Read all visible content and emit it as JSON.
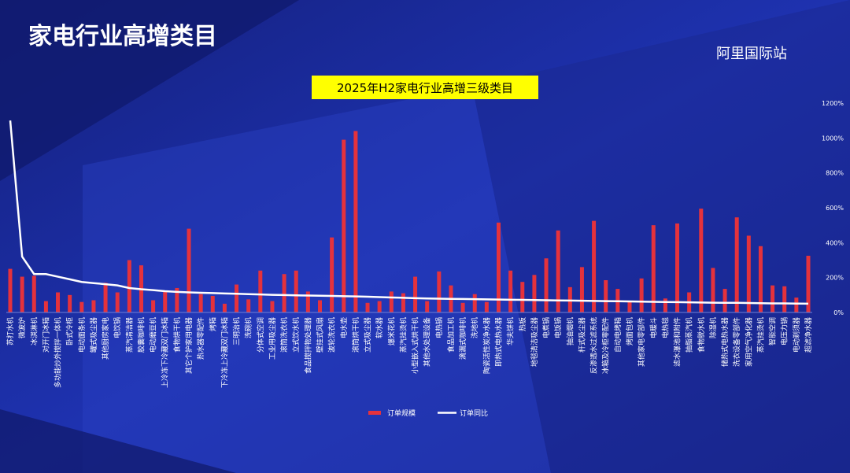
{
  "header": {
    "title": "家电行业高增类目",
    "logo": "阿里国际站"
  },
  "chart_data": {
    "type": "bar",
    "title": "2025年H2家电行业高增三级类目",
    "categories": [
      "苏打水机",
      "微波炉",
      "冰淇淋机",
      "对开门冰箱",
      "多功能炒外搅拌一体机",
      "卧式冷柜",
      "电动面条机",
      "罐式吸尘器",
      "其他厨房家电",
      "电饮锅",
      "蒸汽清洁器",
      "胶囊咖啡机",
      "电动磨豆机",
      "上冷冻下冷藏双门冰箱",
      "食物烘干机",
      "其它个护家用电器",
      "热水器零配件",
      "烤箱",
      "下冷冻上冷藏双门冰箱",
      "三明治机",
      "洗碗机",
      "分体式空调",
      "工业用吸尘器",
      "滚筒洗衣机",
      "立式饮水机",
      "食品搅拌物处理器",
      "壁挂式风扇",
      "波轮洗衣机",
      "电水壶",
      "滚筒烘干机",
      "立式吸尘器",
      "软水器",
      "爆米花机",
      "蒸汽挂烫机",
      "小型嵌入式烘干机",
      "其他水处理设备",
      "电热锅",
      "食品加工机",
      "滴漏式咖啡机",
      "洗地机",
      "陶瓷活性炭净水器",
      "即热式电热水器",
      "华夫饼机",
      "热板",
      "地毯清洁吸尘器",
      "电煮锅",
      "电饭锅",
      "抽油烟机",
      "杆式吸尘器",
      "反渗透水过滤系统",
      "冰箱及冷柜零配件",
      "自动电烤箱",
      "烤面包机",
      "其他家电零部件",
      "电暖斗",
      "电热毯",
      "滤水瀑池和附件",
      "抽脂蒸汽机",
      "食物脱水机",
      "除湿机",
      "储热式电热水器",
      "洗衣设备零部件",
      "家用空气净化器",
      "蒸汽挂烫机",
      "智能空调",
      "电压力锅",
      "电动剃须器",
      "超滤净水器"
    ],
    "series": [
      {
        "name": "订单规模",
        "type": "bar",
        "color": "#e5323c",
        "values": [
          250,
          205,
          210,
          65,
          115,
          100,
          60,
          70,
          170,
          115,
          300,
          270,
          70,
          120,
          140,
          480,
          105,
          95,
          50,
          160,
          75,
          240,
          65,
          220,
          240,
          120,
          70,
          430,
          990,
          1040,
          55,
          65,
          120,
          110,
          205,
          65,
          235,
          155,
          55,
          105,
          60,
          515,
          240,
          175,
          215,
          310,
          470,
          145,
          260,
          525,
          185,
          135,
          60,
          195,
          500,
          80,
          510,
          115,
          595,
          255,
          135,
          545,
          440,
          380,
          155,
          150,
          85,
          325
        ]
      },
      {
        "name": "订单同比",
        "type": "line",
        "color": "#ffffff",
        "values": [
          1100,
          320,
          220,
          220,
          205,
          190,
          175,
          168,
          162,
          155,
          140,
          133,
          128,
          122,
          118,
          115,
          113,
          111,
          109,
          107,
          105,
          103,
          101,
          100,
          98,
          97,
          96,
          95,
          93,
          92,
          90,
          88,
          86,
          84,
          82,
          80,
          79,
          78,
          77,
          76,
          75,
          74,
          73,
          72,
          71,
          70,
          69,
          68,
          67,
          66,
          65,
          64,
          63,
          62,
          61,
          60,
          59,
          58,
          57,
          56,
          55,
          55,
          54,
          53,
          52,
          52,
          51,
          50
        ]
      }
    ],
    "ylim": [
      0,
      1200
    ],
    "yticks": [
      {
        "value": 0,
        "label": "0%"
      },
      {
        "value": 200,
        "label": "200%"
      },
      {
        "value": 400,
        "label": "400%"
      },
      {
        "value": 600,
        "label": "600%"
      },
      {
        "value": 800,
        "label": "800%"
      },
      {
        "value": 1000,
        "label": "1000%"
      },
      {
        "value": 1200,
        "label": "1200%"
      }
    ],
    "legend": "bottom-right"
  }
}
